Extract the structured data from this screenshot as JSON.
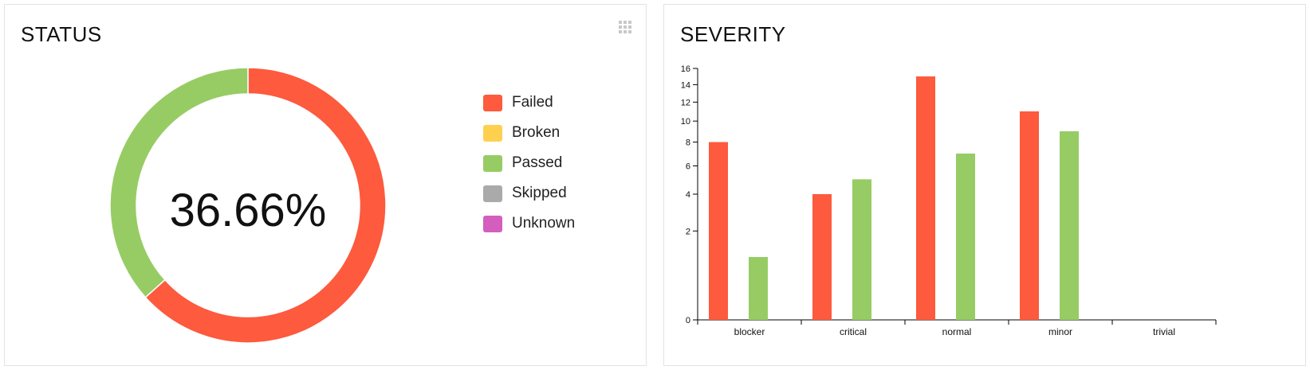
{
  "status": {
    "title": "STATUS",
    "center_label": "36.66%",
    "legend": [
      {
        "label": "Failed",
        "color": "#fd5a3e"
      },
      {
        "label": "Broken",
        "color": "#ffd050"
      },
      {
        "label": "Passed",
        "color": "#97cc64"
      },
      {
        "label": "Skipped",
        "color": "#aaaaaa"
      },
      {
        "label": "Unknown",
        "color": "#d35ebe"
      }
    ],
    "drag_icon": "grid-dots-icon"
  },
  "severity": {
    "title": "SEVERITY"
  },
  "chart_data": [
    {
      "type": "pie",
      "title": "STATUS",
      "categories": [
        "Failed",
        "Broken",
        "Passed",
        "Skipped",
        "Unknown"
      ],
      "values": [
        63.34,
        0,
        36.66,
        0,
        0
      ],
      "colors": [
        "#fd5a3e",
        "#ffd050",
        "#97cc64",
        "#aaaaaa",
        "#d35ebe"
      ],
      "center_label": "36.66%",
      "legend": "right"
    },
    {
      "type": "bar",
      "title": "SEVERITY",
      "categories": [
        "blocker",
        "critical",
        "normal",
        "minor",
        "trivial"
      ],
      "series": [
        {
          "values": [
            8,
            4,
            15,
            11,
            0
          ],
          "color": "#fd5a3e"
        },
        {
          "values": [
            1,
            5,
            7,
            9,
            0
          ],
          "color": "#97cc64"
        }
      ],
      "yscale": "sqrt",
      "yticks": [
        0,
        2,
        4,
        6,
        8,
        10,
        12,
        14,
        16
      ],
      "ylim": [
        0,
        16
      ],
      "grid": false
    }
  ]
}
